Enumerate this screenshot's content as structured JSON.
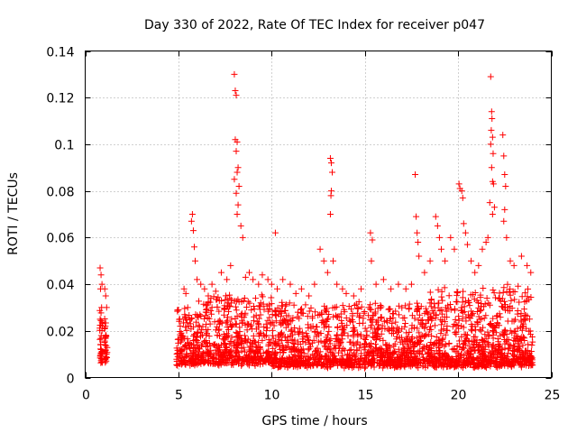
{
  "chart_data": {
    "type": "scatter",
    "title": "Day 330 of 2022, Rate Of TEC Index for receiver p047",
    "xlabel": "GPS time / hours",
    "ylabel": "ROTI / TECUs",
    "xlim": [
      0,
      25
    ],
    "ylim": [
      0,
      0.14
    ],
    "x_ticks": [
      0,
      5,
      10,
      15,
      20,
      25
    ],
    "x_tick_labels": [
      "0",
      "5",
      "10",
      "15",
      "20",
      "25"
    ],
    "y_ticks": [
      0,
      0.02,
      0.04,
      0.06,
      0.08,
      0.1,
      0.12,
      0.14
    ],
    "y_tick_labels": [
      "0",
      "0.02",
      "0.04",
      "0.06",
      "0.08",
      "0.1",
      "0.12",
      "0.14"
    ],
    "grid": true,
    "marker": "+",
    "marker_color": "#ff0000",
    "series": [
      {
        "points": [
          [
            0.8,
            0.047
          ],
          [
            0.85,
            0.044
          ],
          [
            0.9,
            0.04
          ],
          [
            0.82,
            0.038
          ],
          [
            0.88,
            0.03
          ],
          [
            0.8,
            0.025
          ],
          [
            0.92,
            0.022
          ],
          [
            0.86,
            0.018
          ],
          [
            0.83,
            0.014
          ],
          [
            0.9,
            0.011
          ],
          [
            0.87,
            0.008
          ],
          [
            1.05,
            0.038
          ],
          [
            1.1,
            0.035
          ],
          [
            1.15,
            0.03
          ],
          [
            1.08,
            0.022
          ],
          [
            1.12,
            0.018
          ],
          [
            1.06,
            0.014
          ],
          [
            1.14,
            0.01
          ],
          [
            1.1,
            0.008
          ],
          [
            5.0,
            0.029
          ],
          [
            5.1,
            0.022
          ],
          [
            5.2,
            0.018
          ],
          [
            5.3,
            0.038
          ],
          [
            5.4,
            0.036
          ],
          [
            5.5,
            0.03
          ],
          [
            5.7,
            0.067
          ],
          [
            5.75,
            0.07
          ],
          [
            5.8,
            0.063
          ],
          [
            5.85,
            0.056
          ],
          [
            5.9,
            0.05
          ],
          [
            6.0,
            0.042
          ],
          [
            6.2,
            0.04
          ],
          [
            6.4,
            0.038
          ],
          [
            6.6,
            0.035
          ],
          [
            6.8,
            0.04
          ],
          [
            7.0,
            0.037
          ],
          [
            7.3,
            0.045
          ],
          [
            7.6,
            0.042
          ],
          [
            7.8,
            0.048
          ],
          [
            8.0,
            0.13
          ],
          [
            8.05,
            0.123
          ],
          [
            8.1,
            0.121
          ],
          [
            8.05,
            0.102
          ],
          [
            8.15,
            0.101
          ],
          [
            8.1,
            0.097
          ],
          [
            8.2,
            0.09
          ],
          [
            8.15,
            0.088
          ],
          [
            8.0,
            0.085
          ],
          [
            8.25,
            0.082
          ],
          [
            8.1,
            0.079
          ],
          [
            8.2,
            0.074
          ],
          [
            8.15,
            0.07
          ],
          [
            8.35,
            0.065
          ],
          [
            8.45,
            0.06
          ],
          [
            8.6,
            0.043
          ],
          [
            8.8,
            0.045
          ],
          [
            9.0,
            0.042
          ],
          [
            9.3,
            0.04
          ],
          [
            9.5,
            0.044
          ],
          [
            9.8,
            0.042
          ],
          [
            10.0,
            0.04
          ],
          [
            10.2,
            0.062
          ],
          [
            10.3,
            0.038
          ],
          [
            10.6,
            0.042
          ],
          [
            11.0,
            0.04
          ],
          [
            11.3,
            0.036
          ],
          [
            11.6,
            0.038
          ],
          [
            12.0,
            0.035
          ],
          [
            12.3,
            0.04
          ],
          [
            12.6,
            0.055
          ],
          [
            12.8,
            0.05
          ],
          [
            13.0,
            0.045
          ],
          [
            13.15,
            0.094
          ],
          [
            13.2,
            0.092
          ],
          [
            13.25,
            0.088
          ],
          [
            13.2,
            0.08
          ],
          [
            13.18,
            0.078
          ],
          [
            13.15,
            0.07
          ],
          [
            13.3,
            0.05
          ],
          [
            13.5,
            0.04
          ],
          [
            13.8,
            0.038
          ],
          [
            14.0,
            0.036
          ],
          [
            14.4,
            0.035
          ],
          [
            14.8,
            0.038
          ],
          [
            15.3,
            0.062
          ],
          [
            15.4,
            0.059
          ],
          [
            15.35,
            0.05
          ],
          [
            15.6,
            0.04
          ],
          [
            16.0,
            0.042
          ],
          [
            16.4,
            0.038
          ],
          [
            16.8,
            0.04
          ],
          [
            17.2,
            0.038
          ],
          [
            17.5,
            0.04
          ],
          [
            17.7,
            0.087
          ],
          [
            17.75,
            0.069
          ],
          [
            17.8,
            0.062
          ],
          [
            17.85,
            0.058
          ],
          [
            17.9,
            0.052
          ],
          [
            18.2,
            0.045
          ],
          [
            18.5,
            0.05
          ],
          [
            18.8,
            0.069
          ],
          [
            18.9,
            0.065
          ],
          [
            19.0,
            0.06
          ],
          [
            19.1,
            0.055
          ],
          [
            19.3,
            0.05
          ],
          [
            19.6,
            0.06
          ],
          [
            19.8,
            0.055
          ],
          [
            20.05,
            0.083
          ],
          [
            20.1,
            0.081
          ],
          [
            20.2,
            0.08
          ],
          [
            20.25,
            0.077
          ],
          [
            20.3,
            0.066
          ],
          [
            20.4,
            0.062
          ],
          [
            20.5,
            0.057
          ],
          [
            20.7,
            0.05
          ],
          [
            20.9,
            0.045
          ],
          [
            21.1,
            0.048
          ],
          [
            21.3,
            0.055
          ],
          [
            21.5,
            0.058
          ],
          [
            21.6,
            0.06
          ],
          [
            21.7,
            0.075
          ],
          [
            21.75,
            0.129
          ],
          [
            21.8,
            0.114
          ],
          [
            21.82,
            0.111
          ],
          [
            21.78,
            0.106
          ],
          [
            21.85,
            0.103
          ],
          [
            21.75,
            0.1
          ],
          [
            21.88,
            0.096
          ],
          [
            21.8,
            0.09
          ],
          [
            21.85,
            0.084
          ],
          [
            21.9,
            0.083
          ],
          [
            21.95,
            0.073
          ],
          [
            21.85,
            0.07
          ],
          [
            22.4,
            0.104
          ],
          [
            22.45,
            0.095
          ],
          [
            22.5,
            0.087
          ],
          [
            22.55,
            0.082
          ],
          [
            22.5,
            0.072
          ],
          [
            22.45,
            0.067
          ],
          [
            22.6,
            0.06
          ],
          [
            22.8,
            0.05
          ],
          [
            23.0,
            0.048
          ],
          [
            23.4,
            0.052
          ],
          [
            23.7,
            0.048
          ],
          [
            23.9,
            0.045
          ]
        ]
      }
    ]
  }
}
